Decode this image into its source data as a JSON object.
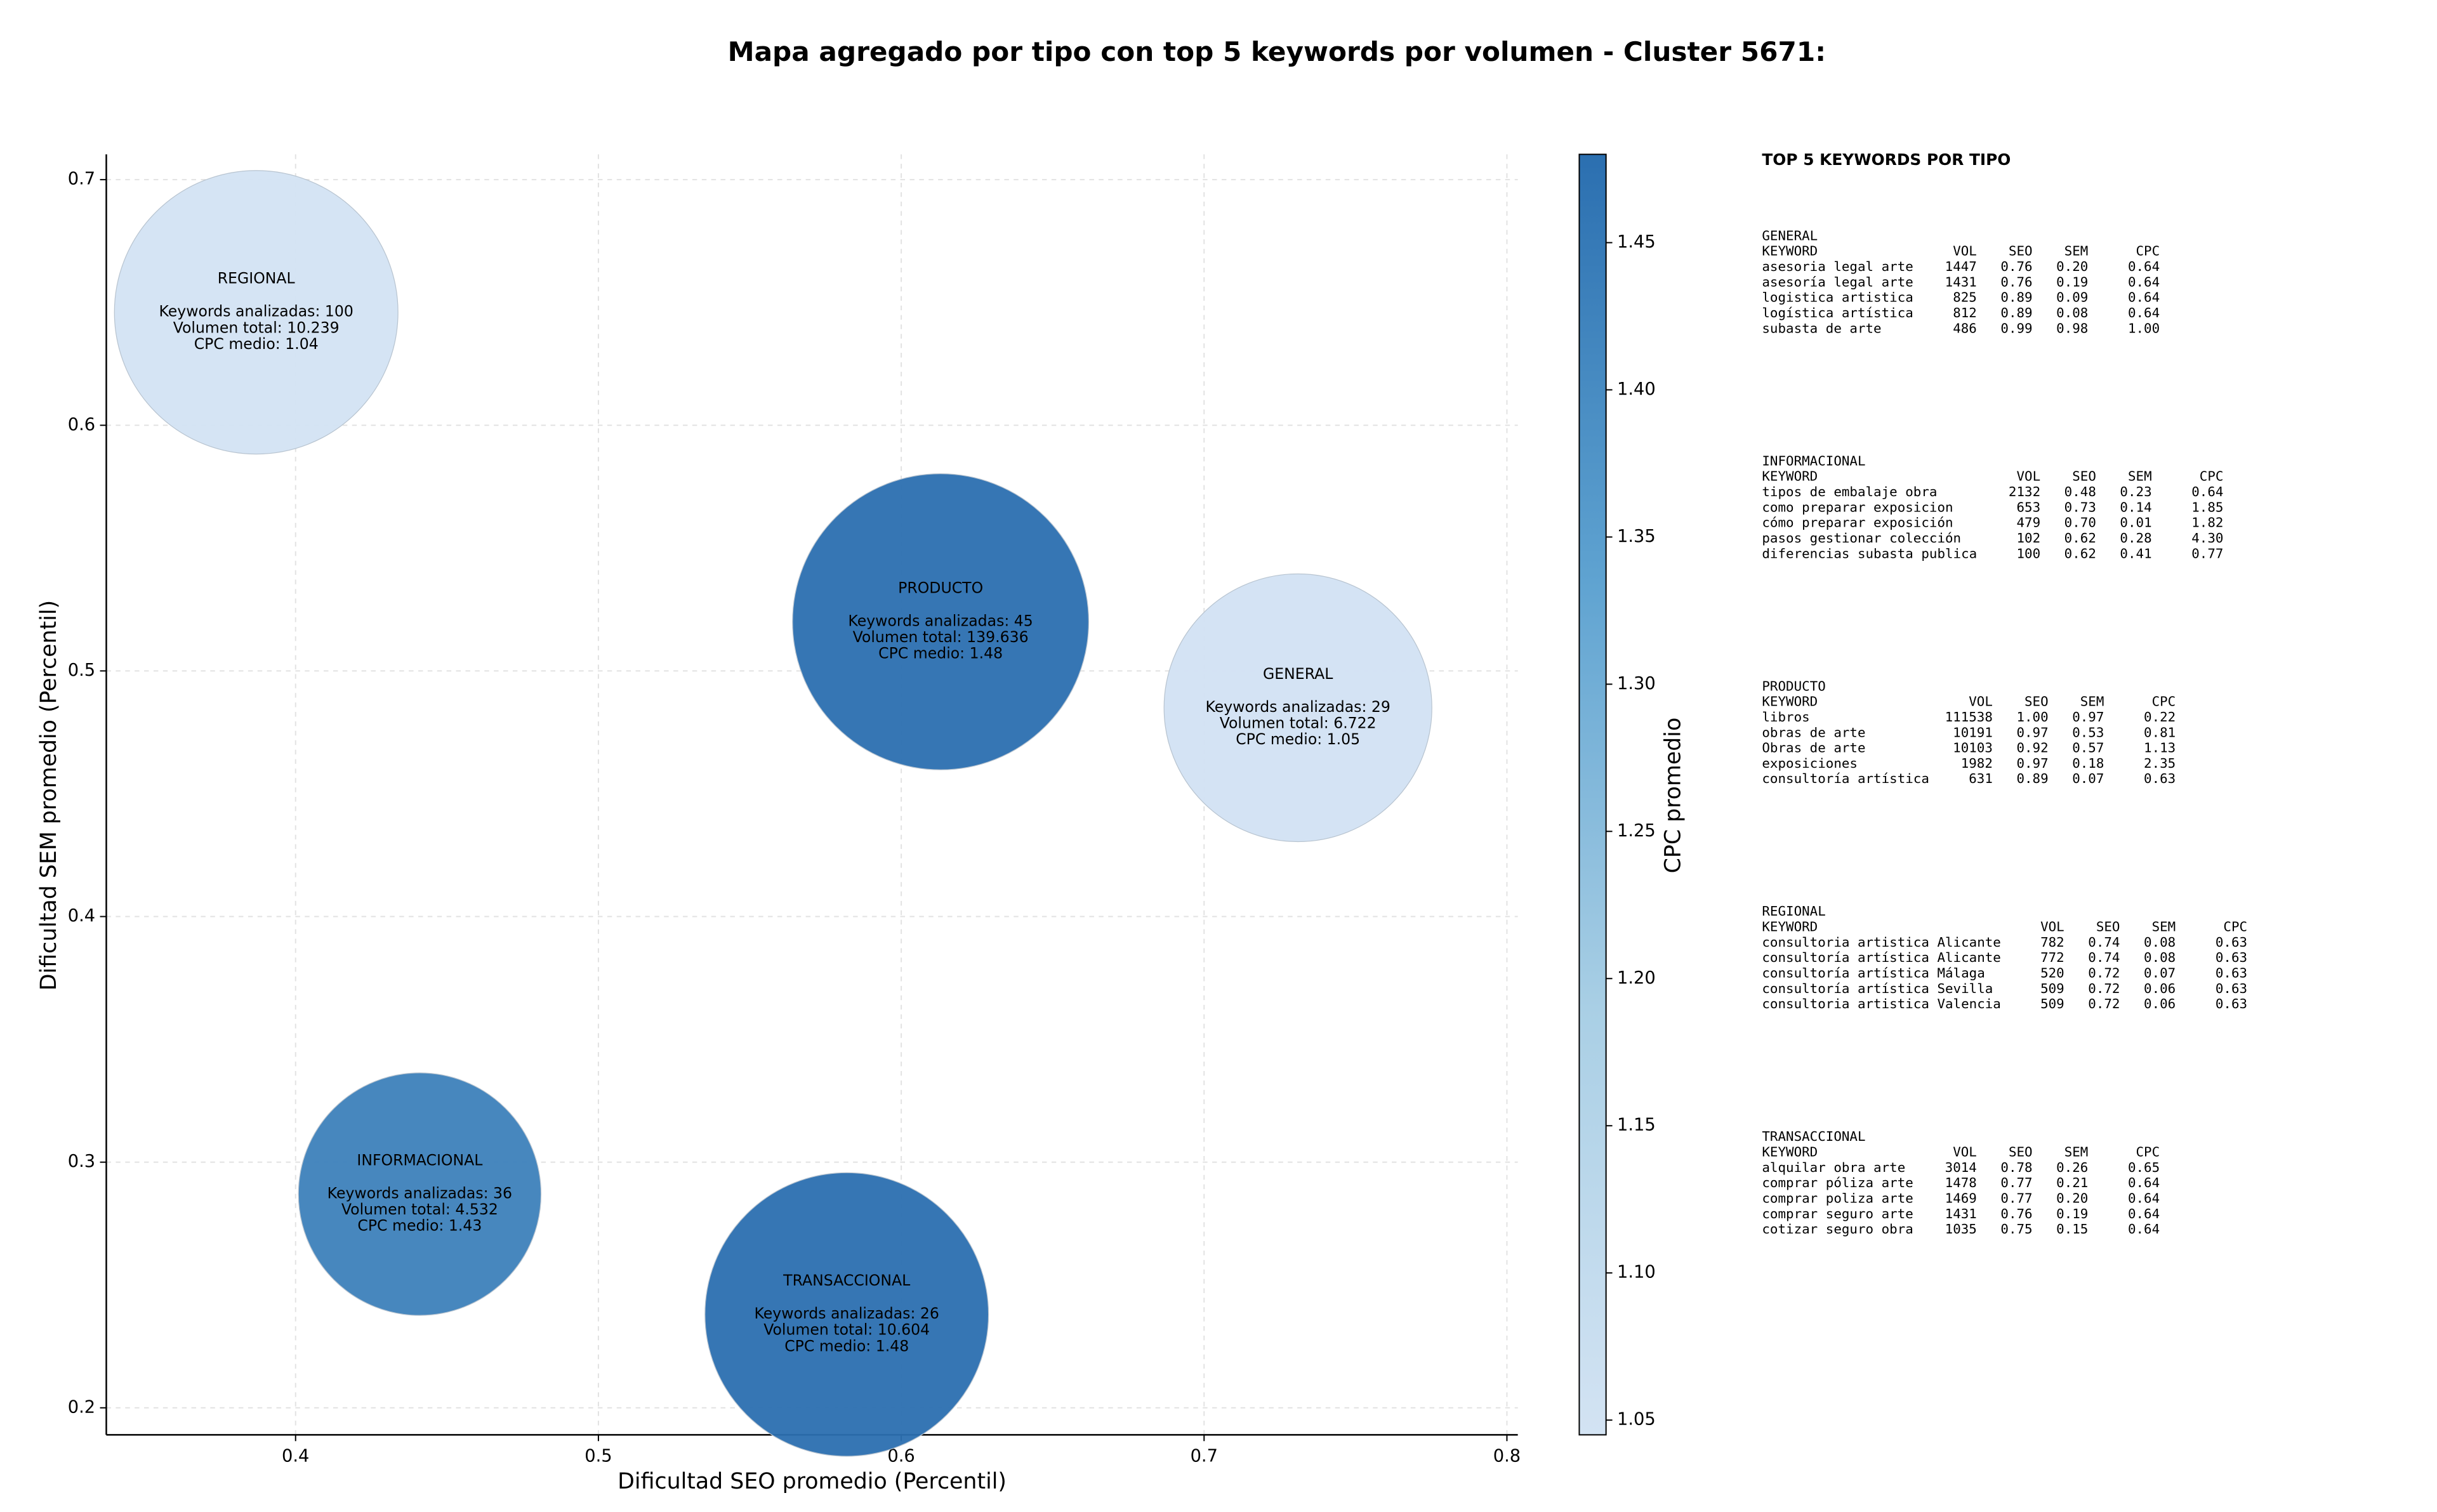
{
  "chart_data": {
    "type": "scatter",
    "title": "Mapa agregado por tipo con top 5 keywords por volumen - Cluster 5671:",
    "xlabel": "Dificultad SEO promedio (Percentil)",
    "ylabel": "Dificultad SEM promedio (Percentil)",
    "xlim": [
      0.3375,
      0.8036
    ],
    "ylim": [
      0.189,
      0.7103
    ],
    "xticks": [
      0.4,
      0.5,
      0.6,
      0.7,
      0.8
    ],
    "yticks": [
      0.2,
      0.3,
      0.4,
      0.5,
      0.6,
      0.7
    ],
    "grid": true,
    "names": [
      "REGIONAL",
      "PRODUCTO",
      "GENERAL",
      "INFORMACIONAL",
      "TRANSACCIONAL"
    ],
    "x": [
      0.387,
      0.613,
      0.731,
      0.441,
      0.582
    ],
    "y": [
      0.646,
      0.52,
      0.485,
      0.287,
      0.238
    ],
    "sizes": [
      8100,
      8836,
      7225,
      5929,
      8100
    ],
    "cpc": [
      1.04,
      1.48,
      1.05,
      1.43,
      1.48
    ],
    "annotations": [
      [
        "Keywords analizadas: 100",
        "Volumen total: 10.239",
        "CPC medio: 1.04"
      ],
      [
        "Keywords analizadas: 45",
        "Volumen total: 139.636",
        "CPC medio: 1.48"
      ],
      [
        "Keywords analizadas: 29",
        "Volumen total: 6.722",
        "CPC medio: 1.05"
      ],
      [
        "Keywords analizadas: 36",
        "Volumen total: 4.532",
        "CPC medio: 1.43"
      ],
      [
        "Keywords analizadas: 26",
        "Volumen total: 10.604",
        "CPC medio: 1.48"
      ]
    ],
    "colorbar": {
      "label": "CPC promedio",
      "clim": [
        1.045,
        1.48
      ],
      "ticks": [
        1.05,
        {
          "value": 1.1,
          "label": "1.10"
        },
        1.15,
        {
          "value": 1.2,
          "label": "1.20"
        },
        1.25,
        {
          "value": 1.3,
          "label": "1.30"
        },
        1.35,
        {
          "value": 1.4,
          "label": "1.40"
        },
        1.45
      ],
      "colormap": [
        "#d3e3f3",
        "#a9cfe5",
        "#5fa3d1",
        "#2b6fb0"
      ]
    }
  },
  "keyword_panel": {
    "title": "TOP 5 KEYWORDS POR TIPO",
    "sections": [
      {
        "name": "GENERAL",
        "header": [
          "KEYWORD",
          "VOL",
          "SEO",
          "SEM",
          "CPC"
        ],
        "rows": [
          [
            "asesoria legal arte",
            "1447",
            "0.76",
            "0.20",
            "0.64"
          ],
          [
            "asesoría legal arte",
            "1431",
            "0.76",
            "0.19",
            "0.64"
          ],
          [
            "logistica artistica",
            "825",
            "0.89",
            "0.09",
            "0.64"
          ],
          [
            "logística artística",
            "812",
            "0.89",
            "0.08",
            "0.64"
          ],
          [
            "subasta de arte",
            "486",
            "0.99",
            "0.98",
            "1.00"
          ]
        ]
      },
      {
        "name": "INFORMACIONAL",
        "header": [
          "KEYWORD",
          "VOL",
          "SEO",
          "SEM",
          "CPC"
        ],
        "rows": [
          [
            "tipos de embalaje obra",
            "2132",
            "0.48",
            "0.23",
            "0.64"
          ],
          [
            "como preparar exposicion",
            "653",
            "0.73",
            "0.14",
            "1.85"
          ],
          [
            "cómo preparar exposición",
            "479",
            "0.70",
            "0.01",
            "1.82"
          ],
          [
            "pasos gestionar colección",
            "102",
            "0.62",
            "0.28",
            "4.30"
          ],
          [
            "diferencias subasta publica",
            "100",
            "0.62",
            "0.41",
            "0.77"
          ]
        ]
      },
      {
        "name": "PRODUCTO",
        "header": [
          "KEYWORD",
          "VOL",
          "SEO",
          "SEM",
          "CPC"
        ],
        "rows": [
          [
            "libros",
            "111538",
            "1.00",
            "0.97",
            "0.22"
          ],
          [
            "obras de arte",
            "10191",
            "0.97",
            "0.53",
            "0.81"
          ],
          [
            "Obras de arte",
            "10103",
            "0.92",
            "0.57",
            "1.13"
          ],
          [
            "exposiciones",
            "1982",
            "0.97",
            "0.18",
            "2.35"
          ],
          [
            "consultoría artística",
            "631",
            "0.89",
            "0.07",
            "0.63"
          ]
        ]
      },
      {
        "name": "REGIONAL",
        "header": [
          "KEYWORD",
          "VOL",
          "SEO",
          "SEM",
          "CPC"
        ],
        "rows": [
          [
            "consultoria artistica Alicante",
            "782",
            "0.74",
            "0.08",
            "0.63"
          ],
          [
            "consultoría artística Alicante",
            "772",
            "0.74",
            "0.08",
            "0.63"
          ],
          [
            "consultoría artística Málaga",
            "520",
            "0.72",
            "0.07",
            "0.63"
          ],
          [
            "consultoría artística Sevilla",
            "509",
            "0.72",
            "0.06",
            "0.63"
          ],
          [
            "consultoria artistica Valencia",
            "509",
            "0.72",
            "0.06",
            "0.63"
          ]
        ]
      },
      {
        "name": "TRANSACCIONAL",
        "header": [
          "KEYWORD",
          "VOL",
          "SEO",
          "SEM",
          "CPC"
        ],
        "rows": [
          [
            "alquilar obra arte",
            "3014",
            "0.78",
            "0.26",
            "0.65"
          ],
          [
            "comprar póliza arte",
            "1478",
            "0.77",
            "0.21",
            "0.64"
          ],
          [
            "comprar poliza arte",
            "1469",
            "0.77",
            "0.20",
            "0.64"
          ],
          [
            "comprar seguro arte",
            "1431",
            "0.76",
            "0.19",
            "0.64"
          ],
          [
            "cotizar seguro obra",
            "1035",
            "0.75",
            "0.15",
            "0.64"
          ]
        ]
      }
    ]
  }
}
